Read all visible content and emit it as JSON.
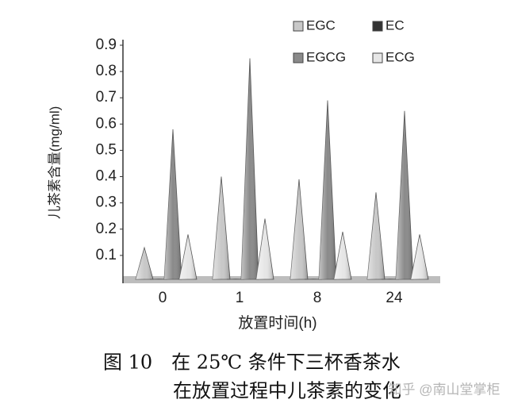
{
  "chart_data": {
    "type": "cone-bar",
    "y_label": "儿茶素含量(mg/ml)",
    "x_label": "放置时间(h)",
    "caption": [
      "图 10　在 25℃ 条件下三杯香茶水",
      "在放置过程中儿茶素的变化"
    ],
    "watermark": "知乎 @南山堂掌柜",
    "categories": [
      "0",
      "1",
      "8",
      "24"
    ],
    "series": [
      {
        "name": "EGC",
        "color": "#c8c8c8",
        "values": [
          0.13,
          0.4,
          0.39,
          0.34
        ]
      },
      {
        "name": "EC",
        "color": "#333333",
        "values": [
          0.01,
          0.01,
          0.01,
          0.01
        ]
      },
      {
        "name": "EGCG",
        "color": "#8a8a8a",
        "values": [
          0.58,
          0.85,
          0.69,
          0.65
        ]
      },
      {
        "name": "ECG",
        "color": "#e6e6e6",
        "values": [
          0.18,
          0.24,
          0.19,
          0.18
        ]
      }
    ],
    "ylim": [
      0,
      0.9
    ],
    "yticks": [
      0.1,
      0.2,
      0.3,
      0.4,
      0.5,
      0.6,
      0.7,
      0.8,
      0.9
    ]
  }
}
